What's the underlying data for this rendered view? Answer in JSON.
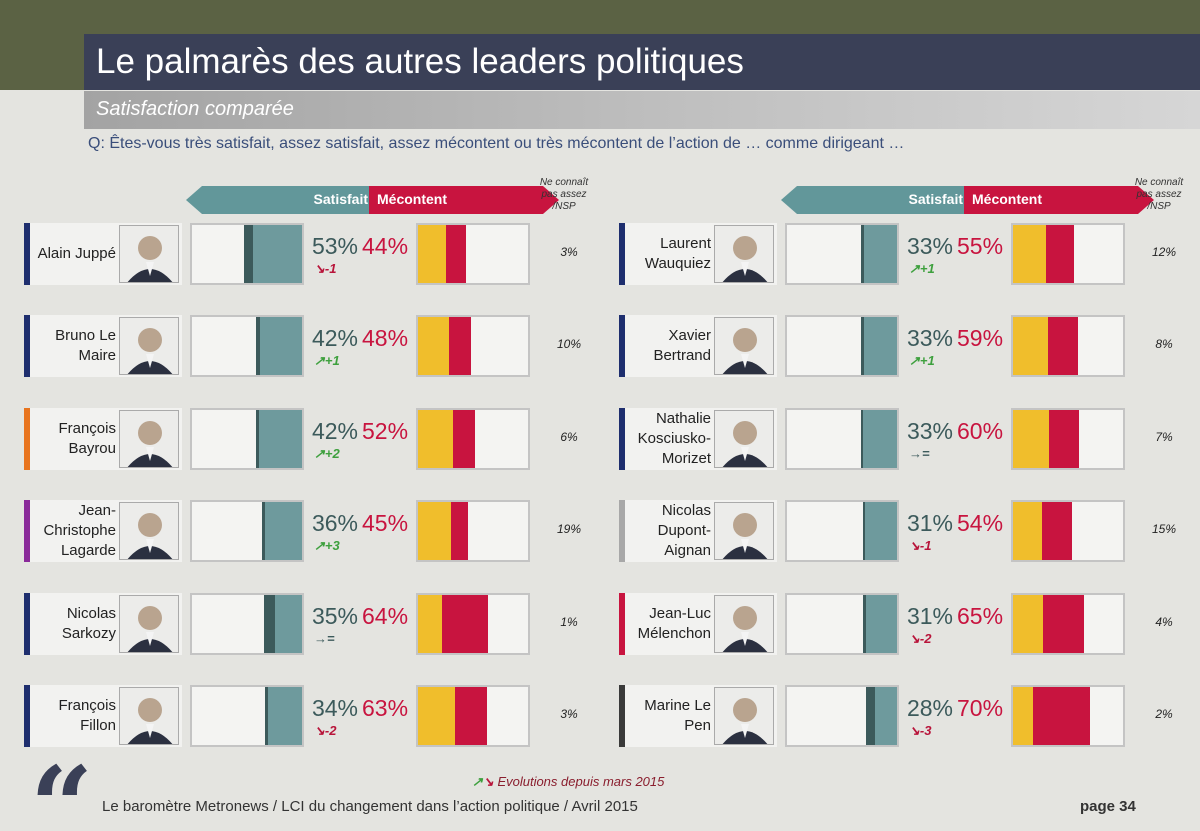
{
  "title": "Le palmarès des autres leaders politiques",
  "subtitle": "Satisfaction comparée",
  "question": "Q: Êtes-vous très satisfait, assez satisfait, assez mécontent ou très mécontent de l’action de … comme dirigeant …",
  "headers": {
    "satisfait": "Satisfait",
    "mecontent": "Mécontent",
    "nsp": "Ne connaît pas assez /NSP"
  },
  "legend": "Evolutions depuis mars 2015",
  "footer": "Le baromètre Metronews / LCI du changement dans l’action politique / Avril 2015",
  "page": "page 34",
  "colors": {
    "satisfait_tres": "#3c5a5b",
    "satisfait_assez": "#6e9a9d",
    "mecontent_assez": "#f0be2c",
    "mecontent_tres": "#c8143f",
    "title_bar": "#3a4057"
  },
  "chart_data": {
    "type": "bar",
    "title": "Le palmarès des autres leaders politiques",
    "subtitle": "Satisfaction comparée",
    "note": "satisfait_tres/satisfait_assez and mecontent_assez/mecontent_tres are estimated from the bar segments",
    "columns": [
      {
        "leaders": [
          {
            "name": "Alain Juppé",
            "accent": "#1e2e6e",
            "satisfait": "53%",
            "satisfait_tres": 8,
            "satisfait_assez": 45,
            "evolution": "-1",
            "trend": "down",
            "mecontent": "44%",
            "mecontent_assez": 25,
            "mecontent_tres": 19,
            "nsp": "3%"
          },
          {
            "name": "Bruno Le Maire",
            "accent": "#1e2e6e",
            "satisfait": "42%",
            "satisfait_tres": 4,
            "satisfait_assez": 38,
            "evolution": "+1",
            "trend": "up",
            "mecontent": "48%",
            "mecontent_assez": 28,
            "mecontent_tres": 20,
            "nsp": "10%"
          },
          {
            "name": "François Bayrou",
            "accent": "#e8741e",
            "satisfait": "42%",
            "satisfait_tres": 3,
            "satisfait_assez": 39,
            "evolution": "+2",
            "trend": "up",
            "mecontent": "52%",
            "mecontent_assez": 32,
            "mecontent_tres": 20,
            "nsp": "6%"
          },
          {
            "name": "Jean-Christophe Lagarde",
            "accent": "#8a2a9a",
            "satisfait": "36%",
            "satisfait_tres": 2,
            "satisfait_assez": 34,
            "evolution": "+3",
            "trend": "up",
            "mecontent": "45%",
            "mecontent_assez": 30,
            "mecontent_tres": 15,
            "nsp": "19%"
          },
          {
            "name": "Nicolas Sarkozy",
            "accent": "#1e2e6e",
            "satisfait": "35%",
            "satisfait_tres": 10,
            "satisfait_assez": 25,
            "evolution": "=",
            "trend": "eq",
            "mecontent": "64%",
            "mecontent_assez": 22,
            "mecontent_tres": 42,
            "nsp": "1%"
          },
          {
            "name": "François Fillon",
            "accent": "#1e2e6e",
            "satisfait": "34%",
            "satisfait_tres": 3,
            "satisfait_assez": 31,
            "evolution": "-2",
            "trend": "down",
            "mecontent": "63%",
            "mecontent_assez": 34,
            "mecontent_tres": 29,
            "nsp": "3%"
          }
        ]
      },
      {
        "leaders": [
          {
            "name": "Laurent Wauquiez",
            "accent": "#1e2e6e",
            "satisfait": "33%",
            "satisfait_tres": 3,
            "satisfait_assez": 30,
            "evolution": "+1",
            "trend": "up",
            "mecontent": "55%",
            "mecontent_assez": 30,
            "mecontent_tres": 25,
            "nsp": "12%"
          },
          {
            "name": "Xavier Bertrand",
            "accent": "#1e2e6e",
            "satisfait": "33%",
            "satisfait_tres": 3,
            "satisfait_assez": 30,
            "evolution": "+1",
            "trend": "up",
            "mecontent": "59%",
            "mecontent_assez": 32,
            "mecontent_tres": 27,
            "nsp": "8%"
          },
          {
            "name": "Nathalie Kosciusko-Morizet",
            "accent": "#1e2e6e",
            "satisfait": "33%",
            "satisfait_tres": 2,
            "satisfait_assez": 31,
            "evolution": "=",
            "trend": "eq",
            "mecontent": "60%",
            "mecontent_assez": 33,
            "mecontent_tres": 27,
            "nsp": "7%"
          },
          {
            "name": "Nicolas Dupont-Aignan",
            "accent": "#a8a8a8",
            "satisfait": "31%",
            "satisfait_tres": 2,
            "satisfait_assez": 29,
            "evolution": "-1",
            "trend": "down",
            "mecontent": "54%",
            "mecontent_assez": 26,
            "mecontent_tres": 28,
            "nsp": "15%"
          },
          {
            "name": "Jean-Luc Mélenchon",
            "accent": "#c8143f",
            "satisfait": "31%",
            "satisfait_tres": 3,
            "satisfait_assez": 28,
            "evolution": "-2",
            "trend": "down",
            "mecontent": "65%",
            "mecontent_assez": 27,
            "mecontent_tres": 38,
            "nsp": "4%"
          },
          {
            "name": "Marine Le Pen",
            "accent": "#3a3a3a",
            "satisfait": "28%",
            "satisfait_tres": 8,
            "satisfait_assez": 20,
            "evolution": "-3",
            "trend": "down",
            "mecontent": "70%",
            "mecontent_assez": 18,
            "mecontent_tres": 52,
            "nsp": "2%"
          }
        ]
      }
    ]
  }
}
